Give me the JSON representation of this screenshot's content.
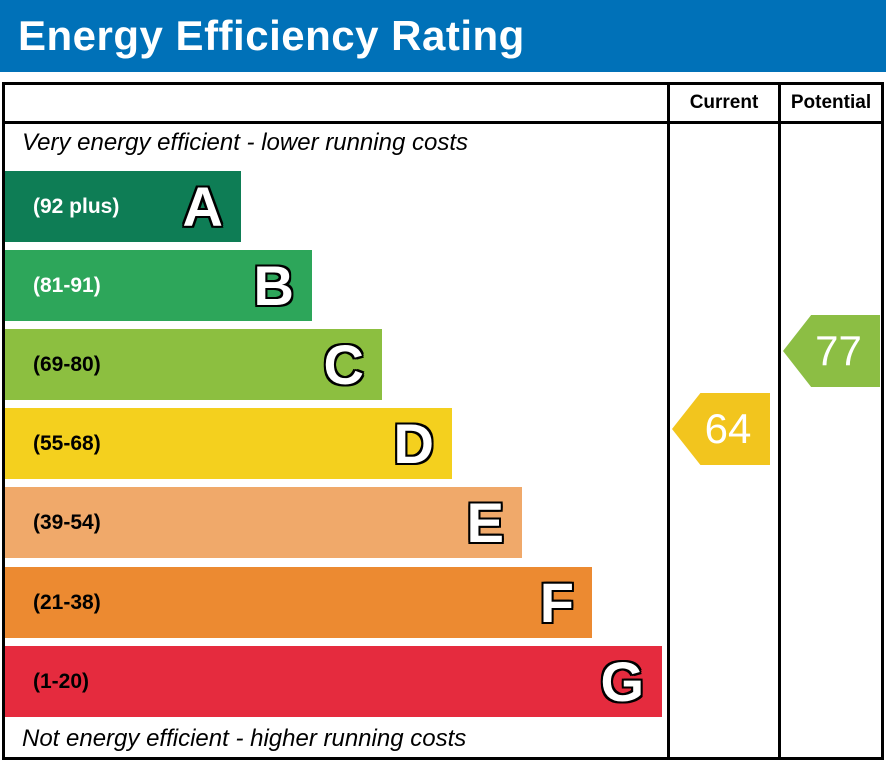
{
  "title": "Energy Efficiency Rating",
  "header": {
    "current_label": "Current",
    "potential_label": "Potential"
  },
  "notes": {
    "top": "Very energy efficient - lower running costs",
    "bottom": "Not energy efficient - higher running costs"
  },
  "colors": {
    "title_bar": "#0071b8",
    "title_text": "#ffffff",
    "border": "#000000"
  },
  "chart_data": {
    "type": "bar",
    "title": "Energy Efficiency Rating",
    "columns": [
      "Current",
      "Potential"
    ],
    "bands": [
      {
        "letter": "A",
        "range_label": "(92 plus)",
        "color": "#0e7d55"
      },
      {
        "letter": "B",
        "range_label": "(81-91)",
        "color": "#2da65a"
      },
      {
        "letter": "C",
        "range_label": "(69-80)",
        "color": "#8cbf40"
      },
      {
        "letter": "D",
        "range_label": "(55-68)",
        "color": "#f4d01e"
      },
      {
        "letter": "E",
        "range_label": "(39-54)",
        "color": "#f0a96a"
      },
      {
        "letter": "F",
        "range_label": "(21-38)",
        "color": "#ec8a31"
      },
      {
        "letter": "G",
        "range_label": "(1-20)",
        "color": "#e52b3e"
      }
    ],
    "current": {
      "value": 64,
      "band": "D",
      "color": "#f2c51e"
    },
    "potential": {
      "value": 77,
      "band": "C",
      "color": "#8cbe44"
    }
  }
}
